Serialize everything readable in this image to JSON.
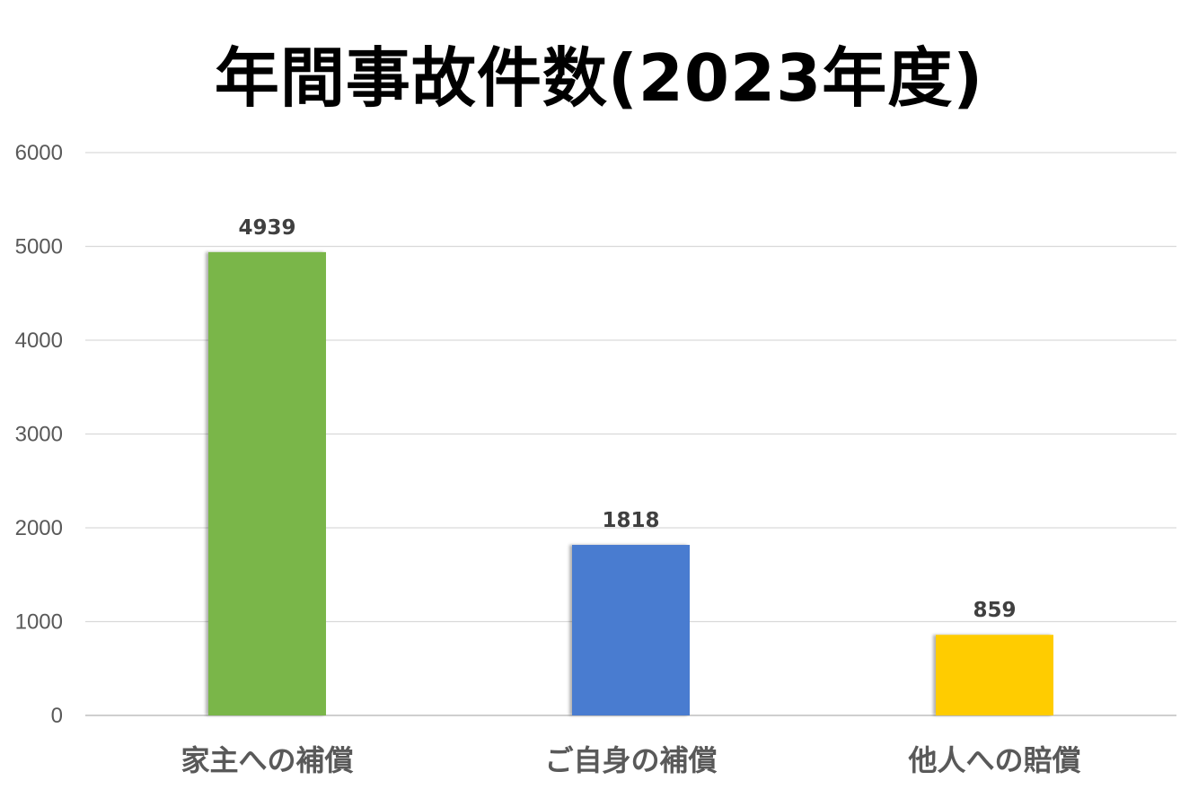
{
  "chart_data": {
    "type": "bar",
    "title": "年間事故件数(2023年度)",
    "categories": [
      "家主への補償",
      "ご自身の補償",
      "他人への賠償"
    ],
    "values": [
      4939,
      1818,
      859
    ],
    "colors": [
      "#7AB648",
      "#4A7BD0",
      "#FFCC00"
    ],
    "ylim": [
      0,
      6000
    ],
    "yticks": [
      0,
      1000,
      2000,
      3000,
      4000,
      5000,
      6000
    ],
    "xlabel": "",
    "ylabel": "",
    "grid": true,
    "legend": "none"
  }
}
